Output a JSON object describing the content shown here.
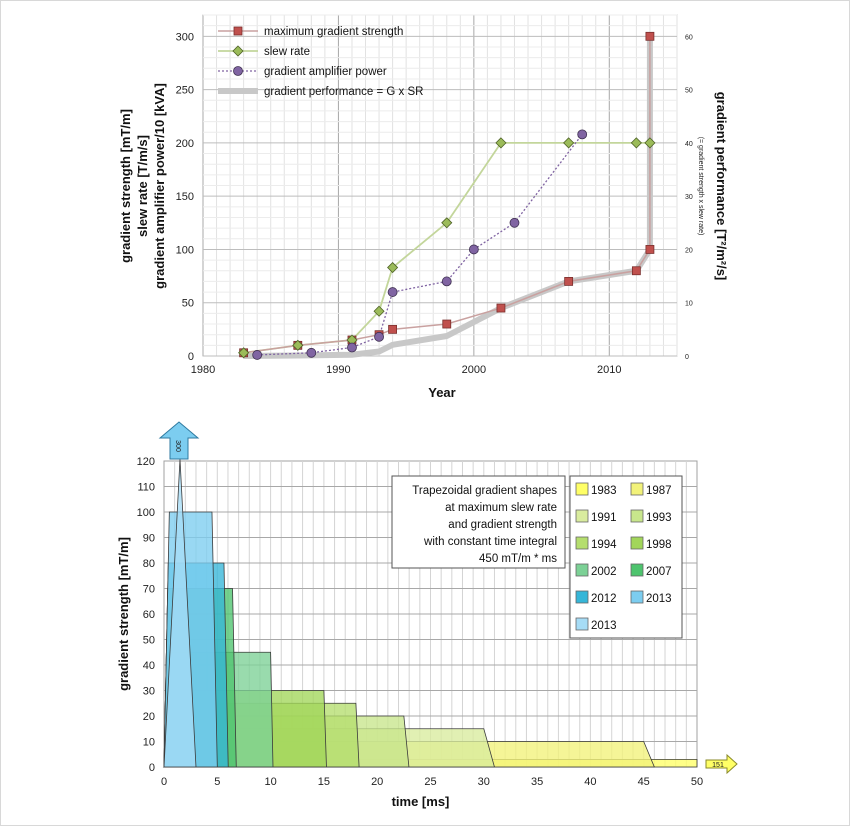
{
  "chart_data": [
    {
      "type": "line",
      "xlabel": "Year",
      "ylabel_lines": [
        "gradient strength [mT/m]",
        "slew rate [T/m/s]",
        "gradient amplifier power/10 [kVA]"
      ],
      "y2label": "gradient performance [T²/m²/s]",
      "y2sublabel": "(= gradient strength x slew rate)",
      "xlim": [
        1980,
        2015
      ],
      "ylim": [
        0,
        320
      ],
      "y2lim": [
        0,
        64
      ],
      "x_ticks": [
        1980,
        1990,
        2000,
        2010
      ],
      "y_ticks": [
        0,
        50,
        100,
        150,
        200,
        250,
        300
      ],
      "y2_ticks": [
        0,
        10,
        20,
        30,
        40,
        50,
        60
      ],
      "grid": true,
      "legend_position": "top-left",
      "series": [
        {
          "name": "maximum gradient strength",
          "axis": "left",
          "color": "#c0504d",
          "x": [
            1983,
            1987,
            1991,
            1993,
            1994,
            1998,
            2002,
            2007,
            2012,
            2013,
            2013
          ],
          "y": [
            3,
            10,
            15,
            20,
            25,
            30,
            45,
            70,
            80,
            100,
            300
          ]
        },
        {
          "name": "slew rate",
          "axis": "left",
          "color": "#9bbb59",
          "x": [
            1983,
            1987,
            1991,
            1993,
            1994,
            1998,
            2002,
            2007,
            2012,
            2013
          ],
          "y": [
            3,
            10,
            15,
            42,
            83,
            125,
            200,
            200,
            200,
            200
          ]
        },
        {
          "name": "gradient amplifier power",
          "axis": "left",
          "color": "#8064a2",
          "x": [
            1984,
            1988,
            1991,
            1993,
            1994,
            1998,
            2000,
            2003,
            2008
          ],
          "y": [
            1,
            3,
            8,
            18,
            60,
            70,
            100,
            125,
            208
          ]
        },
        {
          "name": "gradient performance = G x SR",
          "axis": "right",
          "color": "#c8c8c8",
          "x": [
            1983,
            1987,
            1991,
            1993,
            1994,
            1998,
            2002,
            2007,
            2012,
            2013,
            2013
          ],
          "y": [
            0.01,
            0.1,
            0.23,
            0.84,
            2.1,
            3.75,
            9,
            14,
            16,
            20,
            60
          ]
        }
      ]
    },
    {
      "type": "area",
      "xlabel": "time [ms]",
      "ylabel": "gradient strength [mT/m]",
      "xlim": [
        0,
        50
      ],
      "ylim": [
        0,
        120
      ],
      "x_ticks": [
        0,
        5,
        10,
        15,
        20,
        25,
        30,
        35,
        40,
        45,
        50
      ],
      "y_ticks": [
        0,
        10,
        20,
        30,
        40,
        50,
        60,
        70,
        80,
        90,
        100,
        110,
        120
      ],
      "grid": true,
      "legend_position": "right",
      "annotation": [
        "Trapezoidal gradient shapes",
        "at maximum slew rate",
        "and gradient strength",
        "with constant time integral",
        "450 mT/m * ms"
      ],
      "overflow_labels": {
        "top": "300",
        "right": "151"
      },
      "series": [
        {
          "name": "1983",
          "G": 3,
          "SR": 3,
          "color": "#ffff66"
        },
        {
          "name": "1987",
          "G": 10,
          "SR": 10,
          "color": "#f2f27a"
        },
        {
          "name": "1991",
          "G": 15,
          "SR": 15,
          "color": "#d9ec9e"
        },
        {
          "name": "1993",
          "G": 20,
          "SR": 42,
          "color": "#c8e68c"
        },
        {
          "name": "1994",
          "G": 25,
          "SR": 83,
          "color": "#b5de6e"
        },
        {
          "name": "1998",
          "G": 30,
          "SR": 125,
          "color": "#a2d65a"
        },
        {
          "name": "2002",
          "G": 45,
          "SR": 200,
          "color": "#7cd196"
        },
        {
          "name": "2007",
          "G": 70,
          "SR": 200,
          "color": "#4ec46e"
        },
        {
          "name": "2012",
          "G": 80,
          "SR": 200,
          "color": "#36b6d8"
        },
        {
          "name": "2013",
          "G": 100,
          "SR": 200,
          "color": "#7ccdf0"
        },
        {
          "name": "2013",
          "G": 300,
          "SR": 200,
          "color": "#a6dcf6"
        }
      ]
    }
  ]
}
